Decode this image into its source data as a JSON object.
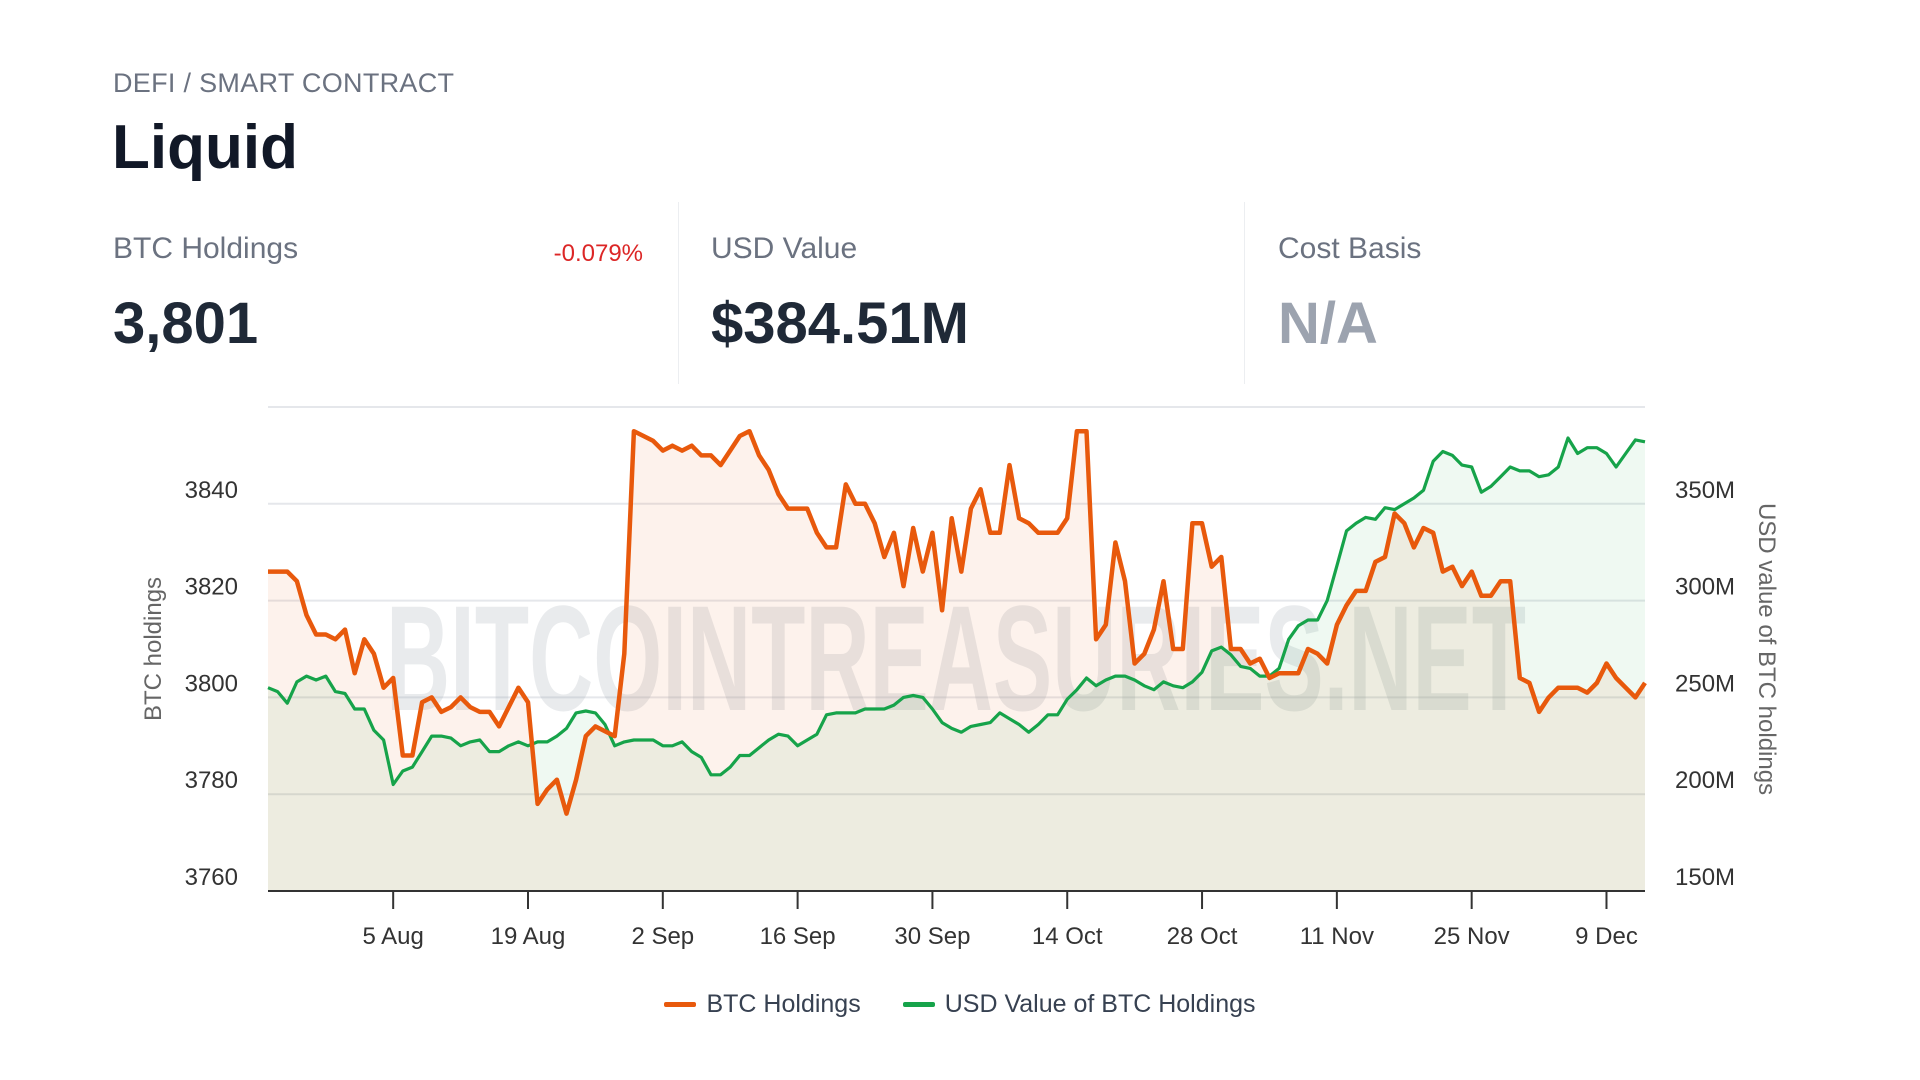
{
  "header": {
    "breadcrumb": "DEFI / SMART CONTRACT",
    "title": "Liquid"
  },
  "stats": [
    {
      "label": "BTC Holdings",
      "value": "3,801",
      "change": "-0.079%"
    },
    {
      "label": "USD Value",
      "value": "$384.51M"
    },
    {
      "label": "Cost Basis",
      "value": "N/A"
    }
  ],
  "colors": {
    "btc": "#e8590c",
    "usd": "#16a34a",
    "change_negative": "#dc2626",
    "na": "#9ca3af"
  },
  "watermark": "BITCOINTREASURIES.NET",
  "chart_data": {
    "type": "line",
    "title": "",
    "xlabel": "",
    "ylabel_left": "BTC holdings",
    "ylabel_right": "USD value of BTC holdings",
    "ylim_left": [
      3760,
      3860
    ],
    "ylim_right": [
      150,
      400
    ],
    "yticks_left": [
      "3760",
      "3780",
      "3800",
      "3820",
      "3840"
    ],
    "yticks_left_values": [
      3760,
      3780,
      3800,
      3820,
      3840
    ],
    "yticks_right": [
      "150M",
      "200M",
      "250M",
      "300M",
      "350M"
    ],
    "yticks_right_values": [
      150,
      200,
      250,
      300,
      350
    ],
    "xticks": [
      "5 Aug",
      "19 Aug",
      "2 Sep",
      "16 Sep",
      "30 Sep",
      "14 Oct",
      "28 Oct",
      "11 Nov",
      "25 Nov",
      "9 Dec"
    ],
    "grid": true,
    "legend_position": "bottom",
    "dates": [
      "23 Jul",
      "24 Jul",
      "25 Jul",
      "26 Jul",
      "27 Jul",
      "28 Jul",
      "29 Jul",
      "30 Jul",
      "31 Jul",
      "1 Aug",
      "2 Aug",
      "3 Aug",
      "4 Aug",
      "5 Aug",
      "6 Aug",
      "7 Aug",
      "8 Aug",
      "9 Aug",
      "10 Aug",
      "11 Aug",
      "12 Aug",
      "13 Aug",
      "14 Aug",
      "15 Aug",
      "16 Aug",
      "17 Aug",
      "18 Aug",
      "19 Aug",
      "20 Aug",
      "21 Aug",
      "22 Aug",
      "23 Aug",
      "24 Aug",
      "25 Aug",
      "26 Aug",
      "27 Aug",
      "28 Aug",
      "29 Aug",
      "30 Aug",
      "31 Aug",
      "1 Sep",
      "2 Sep",
      "3 Sep",
      "4 Sep",
      "5 Sep",
      "6 Sep",
      "7 Sep",
      "8 Sep",
      "9 Sep",
      "10 Sep",
      "11 Sep",
      "12 Sep",
      "13 Sep",
      "14 Sep",
      "15 Sep",
      "16 Sep",
      "17 Sep",
      "18 Sep",
      "19 Sep",
      "20 Sep",
      "21 Sep",
      "22 Sep",
      "23 Sep",
      "24 Sep",
      "25 Sep",
      "26 Sep",
      "27 Sep",
      "28 Sep",
      "29 Sep",
      "30 Sep",
      "1 Oct",
      "2 Oct",
      "3 Oct",
      "4 Oct",
      "5 Oct",
      "6 Oct",
      "7 Oct",
      "8 Oct",
      "9 Oct",
      "10 Oct",
      "11 Oct",
      "12 Oct",
      "13 Oct",
      "14 Oct",
      "15 Oct",
      "16 Oct",
      "17 Oct",
      "18 Oct",
      "19 Oct",
      "20 Oct",
      "21 Oct",
      "22 Oct",
      "23 Oct",
      "24 Oct",
      "25 Oct",
      "26 Oct",
      "27 Oct",
      "28 Oct",
      "29 Oct",
      "30 Oct",
      "31 Oct",
      "1 Nov",
      "2 Nov",
      "3 Nov",
      "4 Nov",
      "5 Nov",
      "6 Nov",
      "7 Nov",
      "8 Nov",
      "9 Nov",
      "10 Nov",
      "11 Nov",
      "12 Nov",
      "13 Nov",
      "14 Nov",
      "15 Nov",
      "16 Nov",
      "17 Nov",
      "18 Nov",
      "19 Nov",
      "20 Nov",
      "21 Nov",
      "22 Nov",
      "23 Nov",
      "24 Nov",
      "25 Nov",
      "26 Nov",
      "27 Nov",
      "28 Nov",
      "29 Nov",
      "30 Nov",
      "1 Dec",
      "2 Dec",
      "3 Dec",
      "4 Dec",
      "5 Dec",
      "6 Dec",
      "7 Dec",
      "8 Dec",
      "9 Dec",
      "10 Dec",
      "11 Dec",
      "12 Dec",
      "13 Dec"
    ],
    "series": [
      {
        "name": "BTC Holdings",
        "axis": "left",
        "values": [
          3826,
          3826,
          3826,
          3824,
          3817,
          3813,
          3813,
          3812,
          3814,
          3805,
          3812,
          3809,
          3802,
          3804,
          3788,
          3788,
          3799,
          3800,
          3797,
          3798,
          3800,
          3798,
          3797,
          3797,
          3794,
          3798,
          3802,
          3799,
          3778,
          3781,
          3783,
          3776,
          3783,
          3792,
          3794,
          3793,
          3792,
          3809,
          3855,
          3854,
          3853,
          3851,
          3852,
          3851,
          3852,
          3850,
          3850,
          3848,
          3851,
          3854,
          3855,
          3850,
          3847,
          3842,
          3839,
          3839,
          3839,
          3834,
          3831,
          3831,
          3844,
          3840,
          3840,
          3836,
          3829,
          3834,
          3823,
          3835,
          3826,
          3834,
          3818,
          3837,
          3826,
          3839,
          3843,
          3834,
          3834,
          3848,
          3837,
          3836,
          3834,
          3834,
          3834,
          3837,
          3855,
          3855,
          3812,
          3815,
          3832,
          3824,
          3807,
          3809,
          3814,
          3824,
          3810,
          3810,
          3836,
          3836,
          3827,
          3829,
          3810,
          3810,
          3807,
          3808,
          3804,
          3805,
          3805,
          3805,
          3810,
          3809,
          3807,
          3815,
          3819,
          3822,
          3822,
          3828,
          3829,
          3838,
          3836,
          3831,
          3835,
          3834,
          3826,
          3827,
          3823,
          3826,
          3821,
          3821,
          3824,
          3824,
          3804,
          3803,
          3797,
          3800,
          3802,
          3802,
          3802,
          3801,
          3803,
          3807,
          3804,
          3802,
          3800,
          3803
        ]
      },
      {
        "name": "USD Value of BTC Holdings",
        "axis": "right",
        "unit": "M",
        "values": [
          255,
          253,
          247,
          258,
          261,
          259,
          261,
          253,
          252,
          244,
          244,
          233,
          228,
          205,
          212,
          214,
          222,
          230,
          230,
          229,
          225,
          227,
          228,
          222,
          222,
          225,
          227,
          225,
          227,
          227,
          230,
          234,
          242,
          243,
          242,
          236,
          225,
          227,
          228,
          228,
          228,
          225,
          225,
          227,
          222,
          219,
          210,
          210,
          214,
          220,
          220,
          224,
          228,
          231,
          230,
          225,
          228,
          231,
          241,
          242,
          242,
          242,
          244,
          244,
          244,
          246,
          250,
          251,
          250,
          244,
          237,
          234,
          232,
          235,
          236,
          237,
          242,
          239,
          236,
          232,
          236,
          241,
          241,
          249,
          254,
          260,
          256,
          259,
          261,
          261,
          259,
          256,
          254,
          258,
          256,
          255,
          258,
          263,
          274,
          276,
          272,
          266,
          265,
          261,
          261,
          265,
          280,
          287,
          290,
          290,
          300,
          318,
          336,
          340,
          343,
          342,
          348,
          347,
          350,
          353,
          357,
          372,
          377,
          375,
          370,
          369,
          356,
          359,
          364,
          369,
          367,
          367,
          364,
          365,
          369,
          384,
          376,
          379,
          379,
          376,
          369,
          376,
          383,
          382
        ]
      }
    ]
  }
}
